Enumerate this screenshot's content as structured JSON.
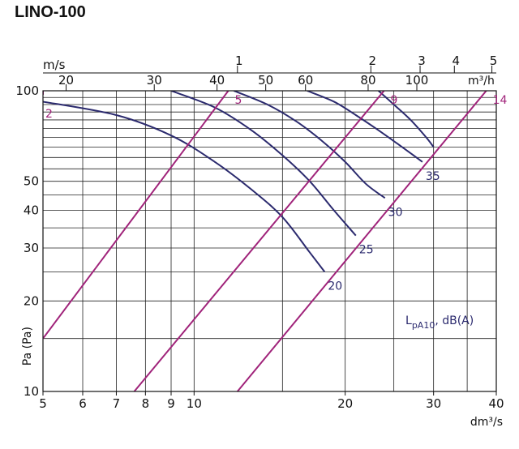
{
  "chart_data": {
    "type": "line",
    "title": "LINO-100",
    "xlabel": "dm³/s",
    "ylabel": "Pa (Pa)",
    "x_scale": "log",
    "y_scale": "log",
    "xlim": [
      5,
      40
    ],
    "ylim": [
      10,
      100
    ],
    "x_ticks": [
      5,
      6,
      7,
      8,
      9,
      10,
      20,
      30,
      40
    ],
    "y_ticks": [
      10,
      20,
      30,
      40,
      50,
      100
    ],
    "top_axis_ms": {
      "label": "m/s",
      "ticks": [
        {
          "label": "1",
          "x": 12.2
        },
        {
          "label": "2",
          "x": 22.5
        },
        {
          "label": "3",
          "x": 28.2
        },
        {
          "label": "4",
          "x": 33.0
        },
        {
          "label": "5",
          "x": 39.2
        }
      ]
    },
    "top_axis_m3h": {
      "label": "m³/h",
      "ticks": [
        {
          "label": "20",
          "x": 5.56
        },
        {
          "label": "30",
          "x": 8.33
        },
        {
          "label": "40",
          "x": 11.11
        },
        {
          "label": "50",
          "x": 13.89
        },
        {
          "label": "60",
          "x": 16.67
        },
        {
          "label": "80",
          "x": 22.22
        },
        {
          "label": "100",
          "x": 27.78
        }
      ]
    },
    "velocity_lines": [
      {
        "label": "2",
        "points": [
          [
            5.0,
            100
          ],
          [
            5.0,
            97
          ]
        ]
      },
      {
        "label": "5",
        "points": [
          [
            5.0,
            15
          ],
          [
            11.7,
            100
          ]
        ]
      },
      {
        "label": "9",
        "points": [
          [
            7.6,
            10
          ],
          [
            23.9,
            100
          ]
        ]
      },
      {
        "label": "14",
        "points": [
          [
            12.2,
            10
          ],
          [
            38.2,
            100
          ]
        ]
      }
    ],
    "series": [
      {
        "name": "20",
        "points": [
          [
            5.0,
            92
          ],
          [
            7.0,
            83
          ],
          [
            9.0,
            71
          ],
          [
            11.0,
            58
          ],
          [
            13.0,
            47
          ],
          [
            15.0,
            38
          ],
          [
            17.0,
            29
          ],
          [
            18.2,
            25
          ]
        ]
      },
      {
        "name": "25",
        "points": [
          [
            9.0,
            100
          ],
          [
            11.0,
            88
          ],
          [
            13.0,
            74
          ],
          [
            15.0,
            61
          ],
          [
            17.0,
            50
          ],
          [
            19.0,
            40
          ],
          [
            21.0,
            33
          ]
        ]
      },
      {
        "name": "30",
        "points": [
          [
            12.0,
            100
          ],
          [
            14.0,
            90
          ],
          [
            16.0,
            79
          ],
          [
            18.0,
            68
          ],
          [
            20.0,
            58
          ],
          [
            22.0,
            49
          ],
          [
            24.0,
            44
          ]
        ]
      },
      {
        "name": "35",
        "points": [
          [
            16.8,
            100
          ],
          [
            19.0,
            92
          ],
          [
            21.0,
            83
          ],
          [
            23.0,
            75
          ],
          [
            25.0,
            68
          ],
          [
            27.0,
            62
          ],
          [
            28.5,
            58
          ]
        ]
      },
      {
        "name": "",
        "points": [
          [
            23.3,
            100
          ],
          [
            25.0,
            90
          ],
          [
            27.0,
            80
          ],
          [
            29.0,
            70
          ],
          [
            30.0,
            65
          ]
        ]
      }
    ],
    "legend_text": "L",
    "legend_sub": "pA10",
    "legend_unit": ", dB(A)"
  }
}
